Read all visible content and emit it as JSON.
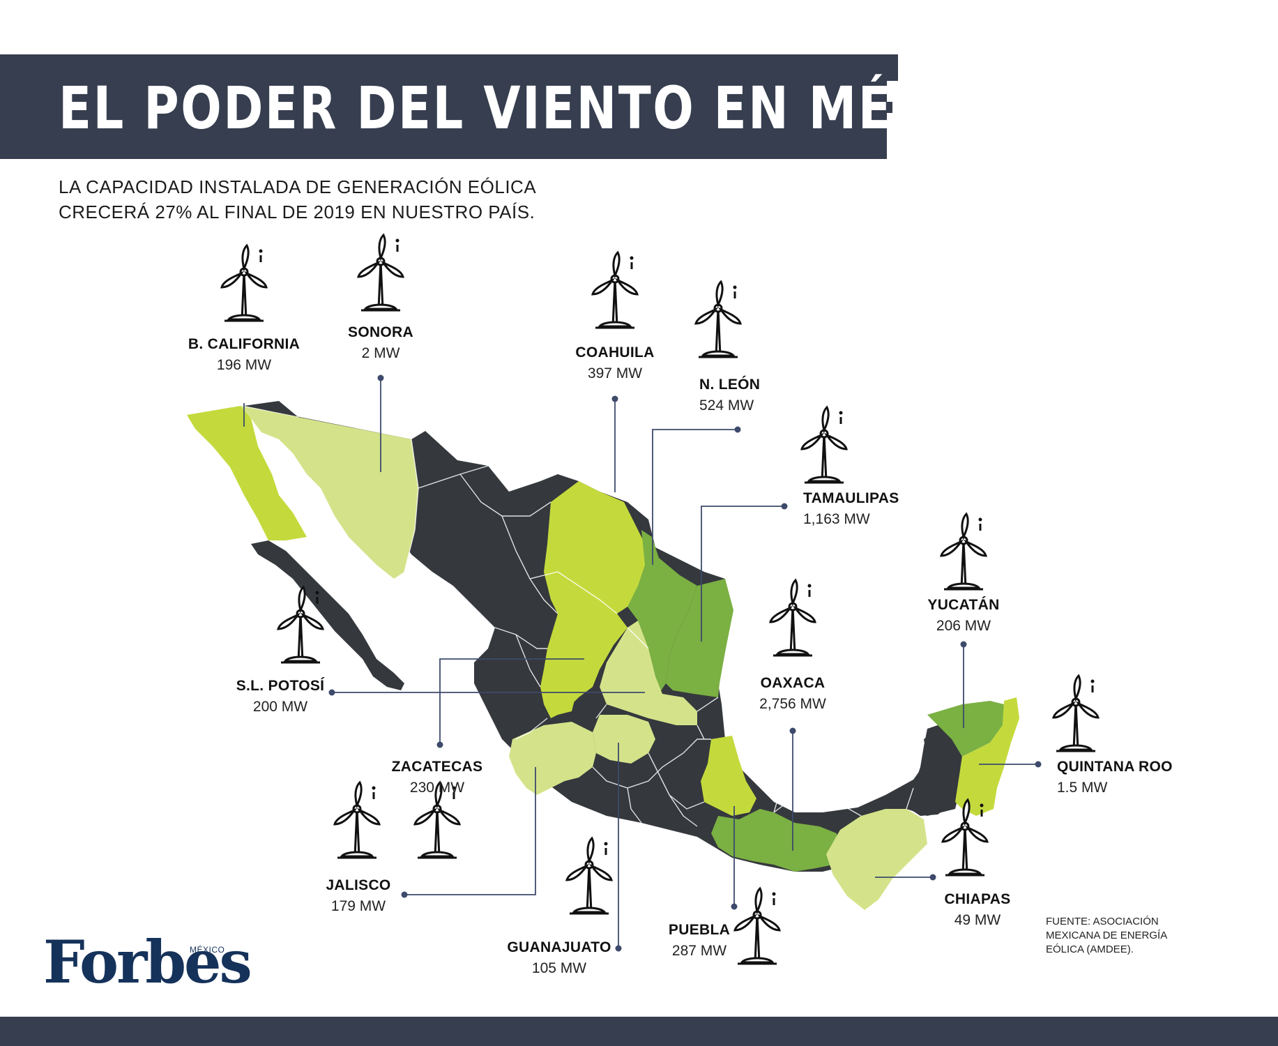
{
  "header": {
    "title": "EL PODER DEL VIENTO EN MÉXICO",
    "subtitle_lines": [
      "LA CAPACIDAD INSTALADA DE GENERACIÓN EÓLICA",
      "CRECERÁ 27% AL FINAL DE 2019 EN NUESTRO PAÍS."
    ]
  },
  "states": {
    "baja_california": {
      "name": "B. CALIFORNIA",
      "capacity": "196 MW"
    },
    "sonora": {
      "name": "SONORA",
      "capacity": "2 MW"
    },
    "coahuila": {
      "name": "COAHUILA",
      "capacity": "397 MW"
    },
    "nuevo_leon": {
      "name": "N. LEÓN",
      "capacity": "524 MW"
    },
    "tamaulipas": {
      "name": "TAMAULIPAS",
      "capacity": "1,163 MW"
    },
    "yucatan": {
      "name": "YUCATÁN",
      "capacity": "206 MW"
    },
    "oaxaca": {
      "name": "OAXACA",
      "capacity": "2,756 MW"
    },
    "quintana_roo": {
      "name": "QUINTANA ROO",
      "capacity": "1.5 MW"
    },
    "san_luis_potosi": {
      "name": "S.L. POTOSÍ",
      "capacity": "200 MW"
    },
    "zacatecas": {
      "name": "ZACATECAS",
      "capacity": "230 MW"
    },
    "jalisco": {
      "name": "JALISCO",
      "capacity": "179 MW"
    },
    "guanajuato": {
      "name": "GUANAJUATO",
      "capacity": "105 MW"
    },
    "puebla": {
      "name": "PUEBLA",
      "capacity": "287 MW"
    },
    "chiapas": {
      "name": "CHIAPAS",
      "capacity": "49 MW"
    }
  },
  "source_lines": [
    "FUENTE: ASOCIACIÓN",
    "MEXICANA DE ENERGÍA",
    "EÓLICA (AMDEE)."
  ],
  "logo": {
    "word": "Forbes",
    "edition": "MÉXICO"
  },
  "icons": {
    "turbine": "wind-turbine-icon"
  },
  "colors": {
    "dark": "#363e4f",
    "map_dark": "#35383d",
    "green_dark": "#7bb043",
    "green_medium": "#c4da3c",
    "green_light": "#d4e38a",
    "leader": "#3d4a6b",
    "logo_blue": "#15325a"
  }
}
